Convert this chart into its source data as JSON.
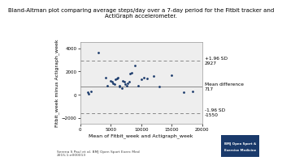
{
  "title": "Bland-Altman plot comparing average steps/day over a 7-day period for the Fitbit tracker and\nActiGraph accelerometer.",
  "xlabel": "Mean of Fitbit_week and Actigraph_week",
  "ylabel": "Fitbit_week minus Actigraph_week",
  "mean_diff": 717,
  "upper_loa": 2927,
  "lower_loa": -1550,
  "upper_loa_label": "+1.96 SD\n2927",
  "mean_diff_label": "Mean difference\n717",
  "lower_loa_label": "-1.96 SD\n-1550",
  "xlim": [
    0,
    20000
  ],
  "ylim": [
    -2500,
    4500
  ],
  "xticks": [
    0,
    5000,
    10000,
    15000,
    20000
  ],
  "yticks": [
    -2000,
    0,
    2000,
    4000
  ],
  "scatter_x": [
    1200,
    1400,
    1800,
    3000,
    4200,
    4500,
    5000,
    5200,
    5400,
    5600,
    5800,
    6000,
    6200,
    6400,
    6500,
    6800,
    7000,
    7200,
    7400,
    7600,
    7800,
    8000,
    8200,
    8500,
    9000,
    9500,
    10000,
    10500,
    11000,
    12000,
    13000,
    15000,
    17000,
    18500
  ],
  "scatter_y": [
    200,
    100,
    300,
    3600,
    1500,
    800,
    1200,
    1100,
    1000,
    900,
    1300,
    1400,
    1500,
    800,
    700,
    600,
    1200,
    1100,
    900,
    800,
    1000,
    1100,
    1800,
    1900,
    2500,
    800,
    1300,
    1500,
    1400,
    1600,
    700,
    1700,
    200,
    300
  ],
  "dot_color": "#1a3a6b",
  "line_color": "#888888",
  "dash_color": "#888888",
  "bg_color": "#ffffff",
  "plot_bg": "#eeeeee",
  "footnote": "Serena S Paul et al. BMJ Open Sport Exerc Med\n2015;1:e000013",
  "title_fontsize": 5.0,
  "label_fontsize": 4.5,
  "tick_fontsize": 4.0,
  "annot_fontsize": 4.2,
  "logo_color": "#1a3a6b"
}
